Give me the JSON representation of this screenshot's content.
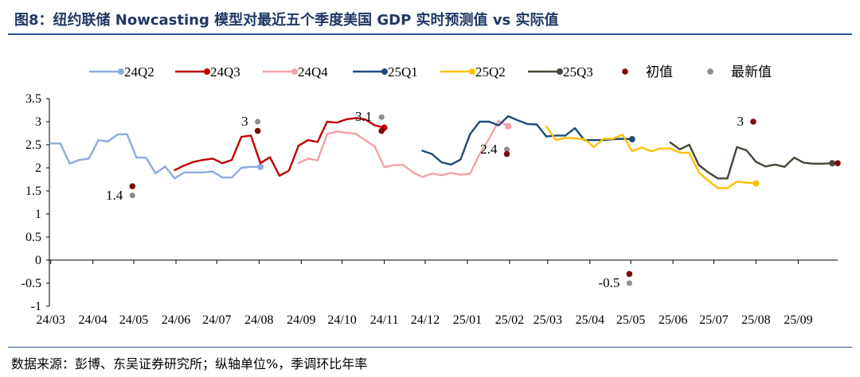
{
  "title": "图8：纽约联储 Nowcasting 模型对最近五个季度美国 GDP 实时预测值 vs 实际值",
  "source": "数据来源：彭博、东吴证券研究所；纵轴单位%，季调环比年率",
  "colors": {
    "24Q2": "#8eaadb",
    "24Q3": "#c00000",
    "24Q4": "#f4a1a6",
    "25Q1": "#1f497d",
    "25Q2": "#ffc000",
    "25Q3": "#4a4536",
    "initial": "#7b0c0c",
    "latest": "#8c8c8c",
    "axis": "#000000"
  },
  "chart_data": {
    "type": "line",
    "legend_position": "top",
    "grid": false,
    "ylim": [
      -1,
      3.5
    ],
    "yticks": [
      "-1",
      "-0.5",
      "0",
      "0.5",
      "1",
      "1.5",
      "2",
      "2.5",
      "3",
      "3.5"
    ],
    "xlim": [
      "2024-02-29",
      "2025-09-30"
    ],
    "xticks": [
      {
        "label": "24/03",
        "date": "2024-03-01"
      },
      {
        "label": "24/04",
        "date": "2024-04-01"
      },
      {
        "label": "24/05",
        "date": "2024-05-01"
      },
      {
        "label": "24/06",
        "date": "2024-06-01"
      },
      {
        "label": "24/07",
        "date": "2024-07-01"
      },
      {
        "label": "24/08",
        "date": "2024-08-01"
      },
      {
        "label": "24/09",
        "date": "2024-09-01"
      },
      {
        "label": "24/10",
        "date": "2024-10-01"
      },
      {
        "label": "24/11",
        "date": "2024-11-01"
      },
      {
        "label": "24/12",
        "date": "2024-12-01"
      },
      {
        "label": "25/01",
        "date": "2025-01-01"
      },
      {
        "label": "25/02",
        "date": "2025-02-01"
      },
      {
        "label": "25/03",
        "date": "2025-03-01"
      },
      {
        "label": "25/04",
        "date": "2025-04-01"
      },
      {
        "label": "25/05",
        "date": "2025-05-01"
      },
      {
        "label": "25/06",
        "date": "2025-06-01"
      },
      {
        "label": "25/07",
        "date": "2025-07-01"
      },
      {
        "label": "25/08",
        "date": "2025-08-01"
      },
      {
        "label": "25/09",
        "date": "2025-09-01"
      }
    ],
    "series": [
      {
        "name": "24Q2",
        "color_key": "24Q2",
        "end_marker": true,
        "x": [
          "2024-02-29",
          "2024-03-08",
          "2024-03-15",
          "2024-03-22",
          "2024-03-29",
          "2024-04-05",
          "2024-04-12",
          "2024-04-19",
          "2024-04-26",
          "2024-05-03",
          "2024-05-10",
          "2024-05-17",
          "2024-05-24",
          "2024-05-31",
          "2024-06-07",
          "2024-06-14",
          "2024-06-21",
          "2024-06-28",
          "2024-07-05",
          "2024-07-12",
          "2024-07-19",
          "2024-07-26",
          "2024-08-02"
        ],
        "y": [
          2.53,
          2.53,
          2.09,
          2.17,
          2.2,
          2.6,
          2.57,
          2.72,
          2.73,
          2.22,
          2.22,
          1.88,
          2.03,
          1.77,
          1.9,
          1.9,
          1.9,
          1.92,
          1.79,
          1.79,
          2.0,
          2.02,
          2.02
        ]
      },
      {
        "name": "24Q3",
        "color_key": "24Q3",
        "end_marker": true,
        "x": [
          "2024-05-31",
          "2024-06-07",
          "2024-06-14",
          "2024-06-21",
          "2024-06-28",
          "2024-07-05",
          "2024-07-12",
          "2024-07-19",
          "2024-07-26",
          "2024-08-02",
          "2024-08-09",
          "2024-08-16",
          "2024-08-23",
          "2024-08-30",
          "2024-09-06",
          "2024-09-13",
          "2024-09-20",
          "2024-09-27",
          "2024-10-04",
          "2024-10-11",
          "2024-10-18",
          "2024-10-25",
          "2024-11-01"
        ],
        "y": [
          1.95,
          2.05,
          2.13,
          2.17,
          2.2,
          2.1,
          2.17,
          2.67,
          2.7,
          2.1,
          2.23,
          1.83,
          1.94,
          2.48,
          2.6,
          2.56,
          3.0,
          2.98,
          3.05,
          3.08,
          3.05,
          2.92,
          2.87
        ]
      },
      {
        "name": "24Q4",
        "color_key": "24Q4",
        "end_marker": true,
        "x": [
          "2024-08-30",
          "2024-09-06",
          "2024-09-13",
          "2024-09-20",
          "2024-09-27",
          "2024-10-04",
          "2024-10-11",
          "2024-10-18",
          "2024-10-25",
          "2024-11-01",
          "2024-11-08",
          "2024-11-15",
          "2024-11-22",
          "2024-11-29",
          "2024-12-06",
          "2024-12-13",
          "2024-12-20",
          "2024-12-27",
          "2025-01-03",
          "2025-01-10",
          "2025-01-17",
          "2025-01-24",
          "2025-01-31"
        ],
        "y": [
          2.1,
          2.2,
          2.16,
          2.73,
          2.79,
          2.76,
          2.74,
          2.6,
          2.46,
          2.01,
          2.06,
          2.06,
          1.9,
          1.8,
          1.88,
          1.84,
          1.89,
          1.85,
          1.87,
          2.3,
          2.63,
          3.02,
          2.9
        ]
      },
      {
        "name": "25Q1",
        "color_key": "25Q1",
        "end_marker": true,
        "x": [
          "2024-11-29",
          "2024-12-06",
          "2024-12-13",
          "2024-12-20",
          "2024-12-27",
          "2025-01-03",
          "2025-01-10",
          "2025-01-17",
          "2025-01-24",
          "2025-01-31",
          "2025-02-07",
          "2025-02-14",
          "2025-02-21",
          "2025-02-28",
          "2025-03-07",
          "2025-03-14",
          "2025-03-21",
          "2025-03-28",
          "2025-04-04",
          "2025-04-11",
          "2025-04-18",
          "2025-04-25",
          "2025-05-02"
        ],
        "y": [
          2.37,
          2.3,
          2.12,
          2.07,
          2.18,
          2.73,
          3.0,
          3.0,
          2.92,
          3.12,
          3.03,
          2.95,
          2.94,
          2.68,
          2.7,
          2.7,
          2.86,
          2.6,
          2.6,
          2.6,
          2.62,
          2.63,
          2.62
        ]
      },
      {
        "name": "25Q2",
        "color_key": "25Q2",
        "end_marker": true,
        "x": [
          "2025-02-28",
          "2025-03-07",
          "2025-03-14",
          "2025-03-21",
          "2025-03-28",
          "2025-04-04",
          "2025-04-11",
          "2025-04-18",
          "2025-04-25",
          "2025-05-02",
          "2025-05-09",
          "2025-05-16",
          "2025-05-23",
          "2025-05-30",
          "2025-06-06",
          "2025-06-13",
          "2025-06-20",
          "2025-06-27",
          "2025-07-04",
          "2025-07-11",
          "2025-07-18",
          "2025-07-25",
          "2025-08-01"
        ],
        "y": [
          2.9,
          2.6,
          2.65,
          2.64,
          2.62,
          2.45,
          2.63,
          2.63,
          2.72,
          2.36,
          2.44,
          2.36,
          2.42,
          2.42,
          2.33,
          2.33,
          1.9,
          1.72,
          1.56,
          1.56,
          1.7,
          1.68,
          1.66
        ]
      },
      {
        "name": "25Q3",
        "color_key": "25Q3",
        "end_marker": true,
        "x": [
          "2025-05-30",
          "2025-06-06",
          "2025-06-13",
          "2025-06-20",
          "2025-06-27",
          "2025-07-04",
          "2025-07-11",
          "2025-07-18",
          "2025-07-25",
          "2025-08-01",
          "2025-08-08",
          "2025-08-15",
          "2025-08-22",
          "2025-08-29",
          "2025-09-05",
          "2025-09-12",
          "2025-09-19",
          "2025-09-26"
        ],
        "y": [
          2.55,
          2.4,
          2.5,
          2.06,
          1.9,
          1.77,
          1.77,
          2.45,
          2.38,
          2.13,
          2.03,
          2.07,
          2.02,
          2.22,
          2.11,
          2.09,
          2.09,
          2.1
        ]
      }
    ],
    "initial_values": {
      "name": "初值",
      "color_key": "initial",
      "points": [
        {
          "x": "2024-04-30",
          "y": 1.6
        },
        {
          "x": "2024-07-31",
          "y": 2.8
        },
        {
          "x": "2024-10-30",
          "y": 2.8
        },
        {
          "x": "2025-01-30",
          "y": 2.3
        },
        {
          "x": "2025-04-30",
          "y": -0.3
        },
        {
          "x": "2025-07-30",
          "y": 3.0
        },
        {
          "x": "2025-09-30",
          "y": 2.1
        }
      ]
    },
    "latest_values": {
      "name": "最新值",
      "color_key": "latest",
      "points": [
        {
          "x": "2024-04-30",
          "y": 1.4
        },
        {
          "x": "2024-07-31",
          "y": 3.0
        },
        {
          "x": "2024-10-30",
          "y": 3.1
        },
        {
          "x": "2025-01-30",
          "y": 2.4
        },
        {
          "x": "2025-04-30",
          "y": -0.5
        },
        {
          "x": "2025-07-30",
          "y": 3.0
        }
      ]
    },
    "annotations": [
      {
        "text": "1.4",
        "x": "2024-04-30",
        "y": 1.4,
        "side": "left"
      },
      {
        "text": "3",
        "x": "2024-07-31",
        "y": 3.0,
        "side": "left"
      },
      {
        "text": "3.1",
        "x": "2024-10-30",
        "y": 3.1,
        "side": "left"
      },
      {
        "text": "2.4",
        "x": "2025-01-30",
        "y": 2.4,
        "side": "left"
      },
      {
        "text": "-0.5",
        "x": "2025-04-30",
        "y": -0.5,
        "side": "left"
      },
      {
        "text": "3",
        "x": "2025-07-30",
        "y": 3.0,
        "side": "left"
      }
    ],
    "legend": [
      {
        "label": "24Q2",
        "color_key": "24Q2",
        "kind": "line"
      },
      {
        "label": "24Q3",
        "color_key": "24Q3",
        "kind": "line"
      },
      {
        "label": "24Q4",
        "color_key": "24Q4",
        "kind": "line"
      },
      {
        "label": "25Q1",
        "color_key": "25Q1",
        "kind": "line"
      },
      {
        "label": "25Q2",
        "color_key": "25Q2",
        "kind": "line"
      },
      {
        "label": "25Q3",
        "color_key": "25Q3",
        "kind": "line"
      },
      {
        "label": "初值",
        "color_key": "initial",
        "kind": "dot"
      },
      {
        "label": "最新值",
        "color_key": "latest",
        "kind": "dot"
      }
    ]
  }
}
